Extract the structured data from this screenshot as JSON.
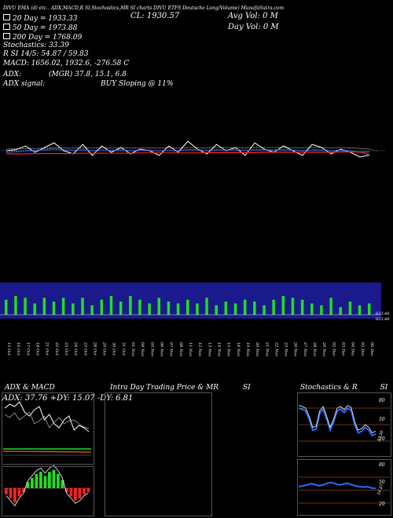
{
  "header": {
    "symbol_line": "DIVU EMA (d) etc.. ADX,MACD,R SI,Stochastics,MR SI charts DIVU ETFS Deutsche Long/Volume) MunafaSutra.com",
    "close_label": "CL: 1930.57",
    "avg_vol": "Avg Vol: 0  M",
    "day_vol": "Day Vol: 0  M",
    "ema20": "20  Day = 1933.33",
    "ema50": "50  Day = 1973.88",
    "ema200": "200  Day = 1768.09",
    "stochastics": "Stochastics: 33.39",
    "rsi": "R         SI 14/5: 54.87 / 59.83",
    "macd": "MACD: 1656.02, 1932.6, -276.58  C",
    "adx": "ADX:",
    "mrsi": "(MGR) 37.8, 15.1, 6.8",
    "adx_signal": "ADX  signal:",
    "buy_signal": "BUY Sloping @ 11%"
  },
  "colors": {
    "price": "#ffffff",
    "ema20": "#3a6bff",
    "ema50": "#ffffff",
    "ema200": "#ff2020",
    "volume_band": "#1a1a8c",
    "volume_bar": "#22dd22",
    "macd_hist_pos": "#22dd22",
    "macd_hist_neg": "#ff2020",
    "rsi_line": "#2a6bff",
    "orange": "#d2691e"
  },
  "volume_labels": [
    "623.46",
    "623.46"
  ],
  "date_labels": [
    "15 Oct",
    "16 Oct",
    "17 Oct",
    "18 Oct",
    "21 Oct",
    "22 Oct",
    "23 Oct",
    "24 Oct",
    "25 Oct",
    "28 Oct",
    "29 Oct",
    "30 Oct",
    "31 Oct",
    "01 Nov",
    "04 Nov",
    "05 Nov",
    "06 Nov",
    "07 Nov",
    "08 Nov",
    "11 Nov",
    "12 Nov",
    "13 Nov",
    "14 Nov",
    "15 Nov",
    "18 Nov",
    "19 Nov",
    "20 Nov",
    "21 Nov",
    "22 Nov",
    "25 Nov",
    "26 Nov",
    "27 Nov",
    "28 Nov",
    "29 Nov",
    "02 Dec",
    "03 Dec",
    "04 Dec",
    "05 Dec",
    "06 Dec"
  ],
  "panels": {
    "adx_macd": {
      "title": "ADX  & MACD",
      "adx_readout": "ADX: 37.76  +DY: 15.07 -DY: 6.81"
    },
    "intraday": {
      "title": "Intra  Day Trading Price  & MR",
      "title_suffix": "SI"
    },
    "stoch": {
      "title": "Stochastics & R",
      "title_suffix": "SI",
      "ticks": [
        "80",
        "50",
        "20"
      ],
      "rsi_ticks": [
        "80",
        "50",
        "20"
      ],
      "stoch_value": "33.39",
      "rsi_value": "54.87"
    }
  },
  "chart_data": {
    "type": "line",
    "x": [
      "15 Oct",
      "16 Oct",
      "17 Oct",
      "18 Oct",
      "21 Oct",
      "22 Oct",
      "23 Oct",
      "24 Oct",
      "25 Oct",
      "28 Oct",
      "29 Oct",
      "30 Oct",
      "31 Oct",
      "01 Nov",
      "04 Nov",
      "05 Nov",
      "06 Nov",
      "07 Nov",
      "08 Nov",
      "11 Nov",
      "12 Nov",
      "13 Nov",
      "14 Nov",
      "15 Nov",
      "18 Nov",
      "19 Nov",
      "20 Nov",
      "21 Nov",
      "22 Nov",
      "25 Nov",
      "26 Nov",
      "27 Nov",
      "28 Nov",
      "29 Nov",
      "02 Dec",
      "03 Dec",
      "04 Dec",
      "05 Dec",
      "06 Dec"
    ],
    "series": [
      {
        "values": [
          1945,
          1948,
          1960,
          1940,
          1955,
          1970,
          1945,
          1935,
          1965,
          1930,
          1960,
          1940,
          1955,
          1935,
          1950,
          1945,
          1930,
          1960,
          1940,
          1975,
          1950,
          1935,
          1965,
          1945,
          1955,
          1930,
          1970,
          1950,
          1940,
          1960,
          1945,
          1930,
          1965,
          1955,
          1935,
          1950,
          1940,
          1925,
          1931
        ]
      },
      {
        "values": [
          1940,
          1942,
          1945,
          1946,
          1948,
          1950,
          1948,
          1946,
          1948,
          1945,
          1947,
          1946,
          1947,
          1945,
          1946,
          1946,
          1944,
          1946,
          1945,
          1948,
          1948,
          1946,
          1948,
          1947,
          1948,
          1946,
          1948,
          1948,
          1947,
          1948,
          1947,
          1945,
          1947,
          1947,
          1945,
          1946,
          1944,
          1940,
          1933
        ]
      },
      {
        "values": [
          1950,
          1951,
          1952,
          1952,
          1953,
          1954,
          1954,
          1953,
          1954,
          1953,
          1954,
          1953,
          1954,
          1953,
          1954,
          1954,
          1953,
          1954,
          1953,
          1955,
          1955,
          1954,
          1955,
          1955,
          1955,
          1954,
          1955,
          1955,
          1955,
          1955,
          1955,
          1954,
          1955,
          1955,
          1954,
          1955,
          1954,
          1952,
          1950
        ]
      },
      {
        "values": [
          1935,
          1935,
          1935,
          1936,
          1936,
          1936,
          1936,
          1936,
          1937,
          1937,
          1937,
          1937,
          1937,
          1937,
          1938,
          1938,
          1938,
          1938,
          1938,
          1938,
          1938,
          1939,
          1939,
          1939,
          1939,
          1939,
          1939,
          1940,
          1940,
          1940,
          1940,
          1940,
          1940,
          1940,
          1940,
          1941,
          1941,
          1941,
          1941
        ]
      }
    ],
    "volume": [
      8,
      10,
      9,
      6,
      9,
      7,
      9,
      6,
      9,
      5,
      8,
      10,
      7,
      10,
      8,
      6,
      9,
      7,
      6,
      8,
      6,
      9,
      5,
      7,
      6,
      8,
      7,
      5,
      8,
      10,
      9,
      8,
      6,
      5,
      9,
      4,
      7,
      5,
      6
    ],
    "macd_hist": [
      -3,
      -5,
      -7,
      -4,
      -2,
      3,
      5,
      7,
      8,
      6,
      8,
      9,
      7,
      4,
      -2,
      -4,
      -6,
      -5,
      -3,
      -2
    ],
    "stoch": [
      80,
      78,
      75,
      60,
      40,
      42,
      70,
      78,
      60,
      40,
      55,
      75,
      78,
      72,
      80,
      76,
      50,
      35,
      38,
      45,
      40,
      30,
      33
    ],
    "rsi_small": [
      58,
      60,
      62,
      65,
      63,
      60,
      62,
      66,
      68,
      65,
      62,
      64,
      66,
      63,
      60,
      58,
      57,
      58,
      55,
      54
    ]
  }
}
